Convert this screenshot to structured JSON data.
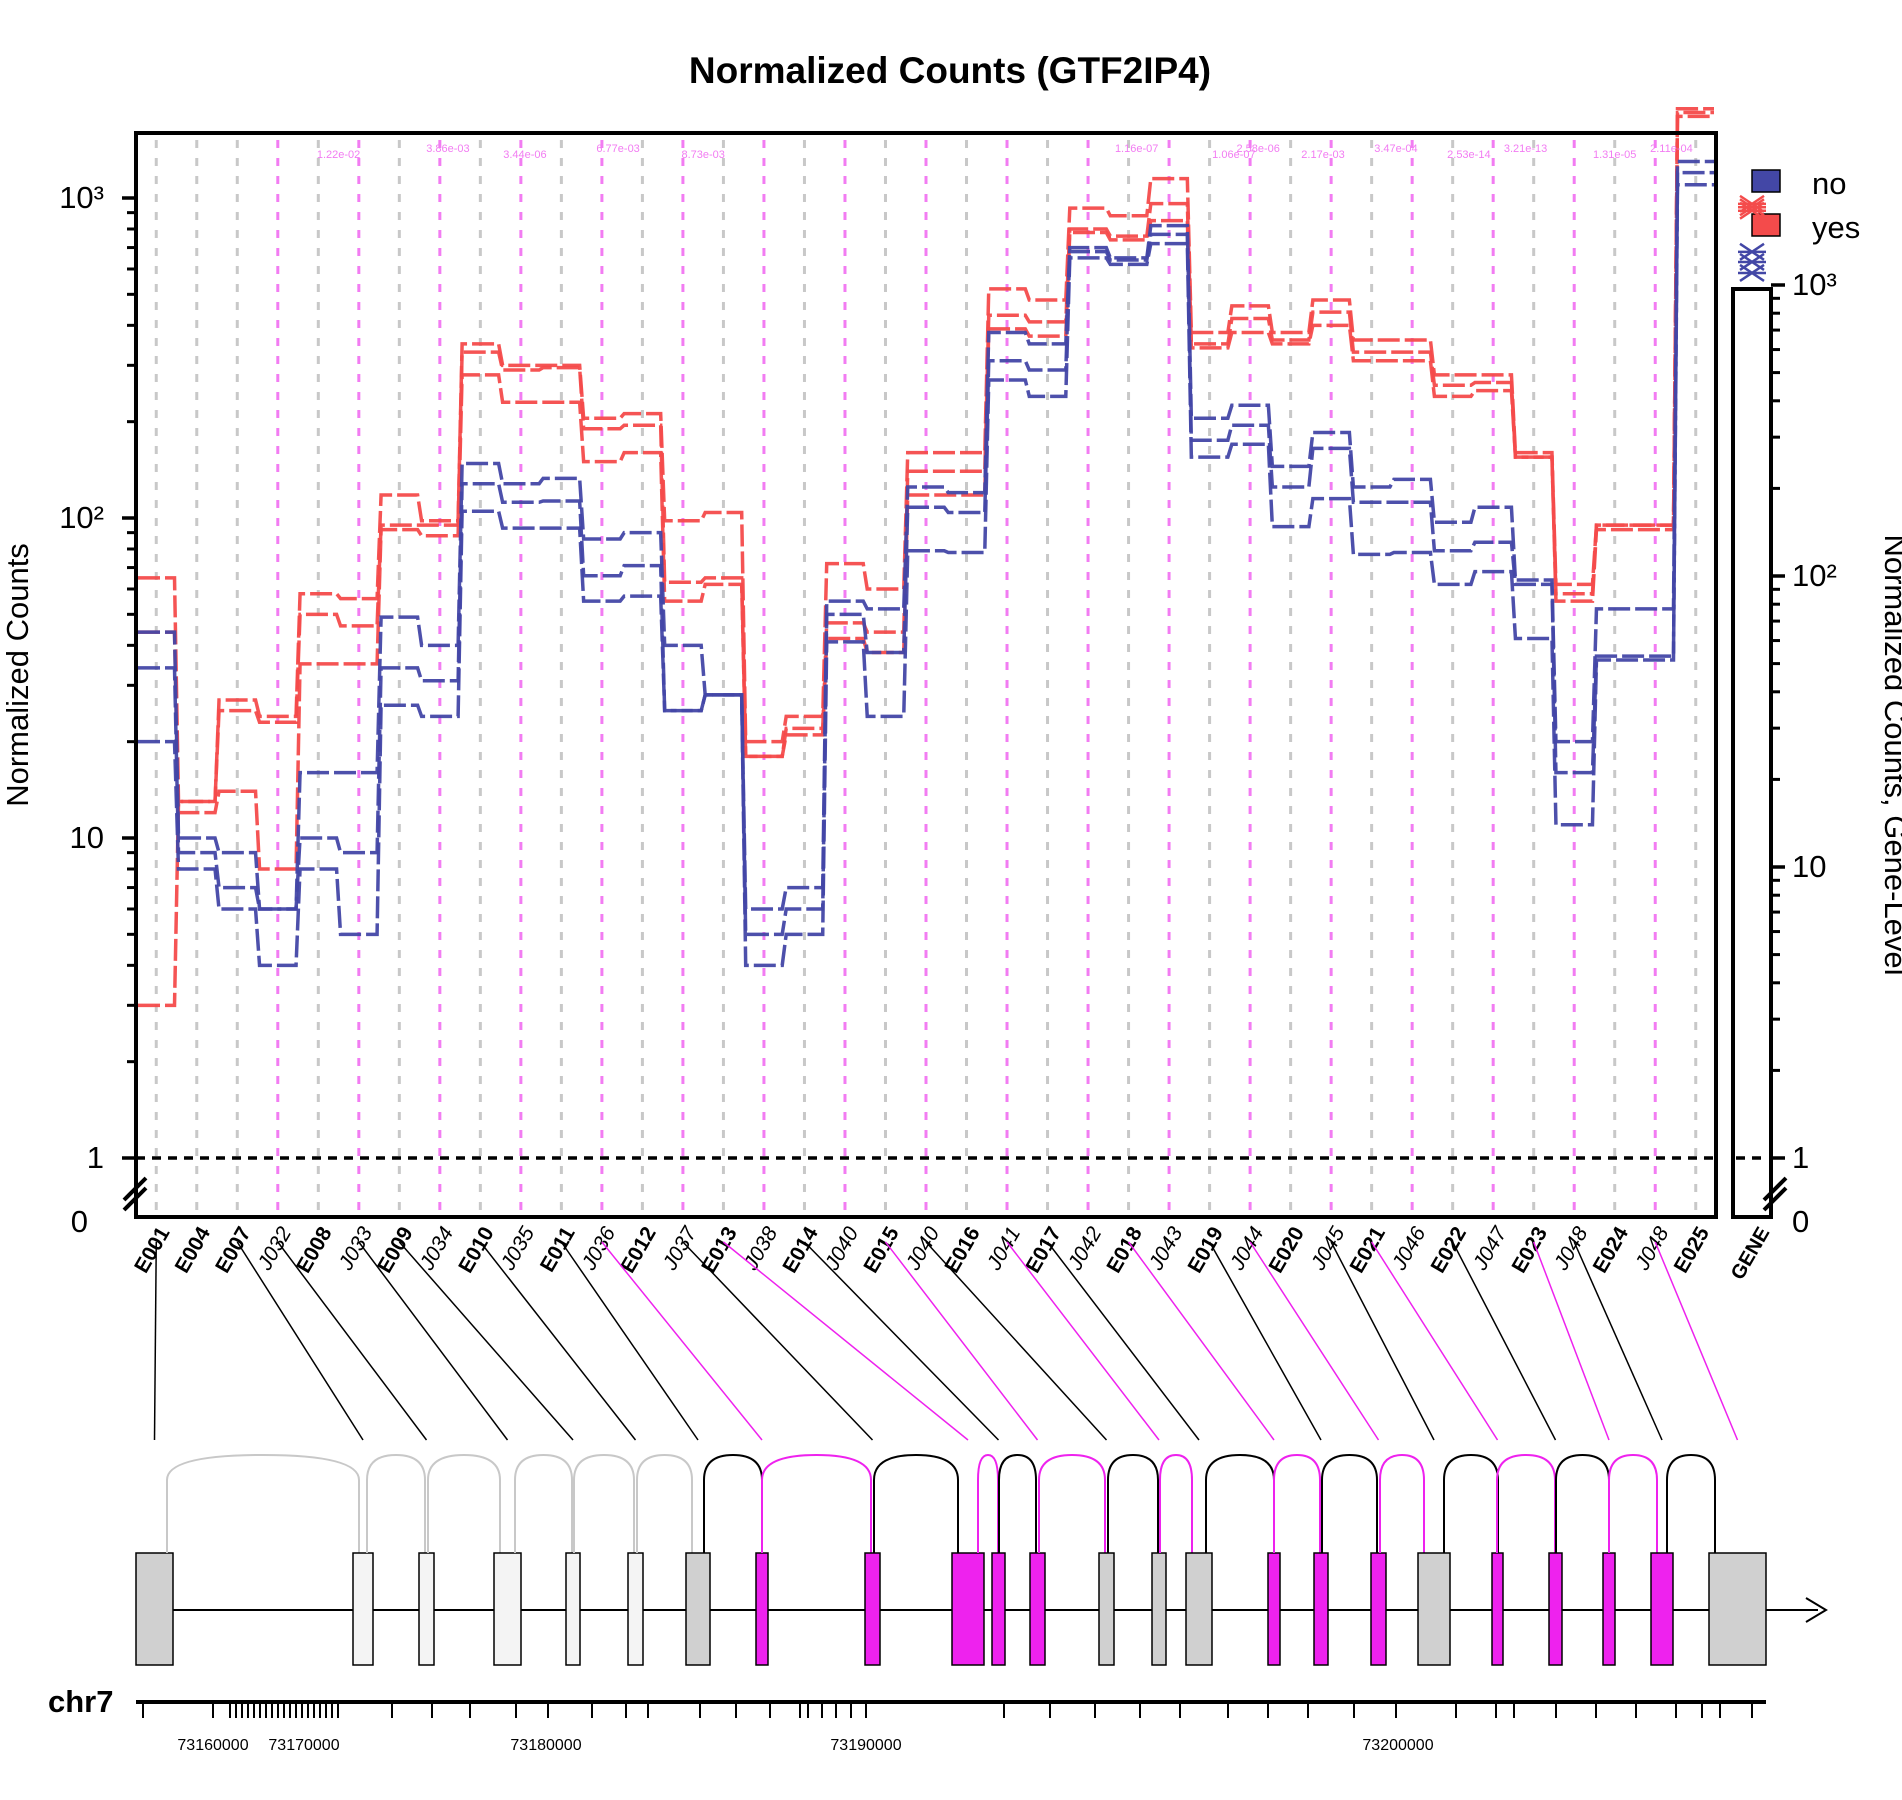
{
  "chart_data": {
    "type": "line",
    "title": "Normalized Counts (GTF2IP4)",
    "ylabel": "Normalized Counts",
    "ylabel_right": "Normalized Counts, Gene-Level",
    "yscale": "log",
    "ylim": [
      1,
      1500
    ],
    "y_ticks": [
      "10³",
      "10²",
      "10",
      "1",
      "0"
    ],
    "y_ticks_right": [
      "10³",
      "10²",
      "10",
      "1",
      "0"
    ],
    "legend": {
      "position": "top-right",
      "items": [
        {
          "label": "no",
          "color": "#4347a6"
        },
        {
          "label": "yes",
          "color": "#f44b4b"
        }
      ]
    },
    "categories": [
      "E001",
      "E004",
      "E007",
      "J032",
      "E008",
      "J033",
      "E009",
      "J034",
      "E010",
      "J035",
      "E011",
      "J036",
      "E012",
      "J037",
      "E013",
      "J038",
      "E014",
      "J040",
      "E015",
      "J040",
      "E016",
      "J041",
      "E017",
      "J042",
      "E018",
      "J043",
      "E019",
      "J044",
      "E020",
      "J045",
      "E021",
      "J046",
      "E022",
      "J047",
      "E023",
      "J048",
      "E024",
      "J048",
      "E025"
    ],
    "category_is_junction": [
      false,
      false,
      false,
      true,
      false,
      true,
      false,
      true,
      false,
      true,
      false,
      true,
      false,
      true,
      false,
      true,
      false,
      true,
      false,
      true,
      false,
      true,
      false,
      true,
      false,
      true,
      false,
      true,
      false,
      true,
      false,
      true,
      false,
      true,
      false,
      true,
      false,
      true,
      false
    ],
    "series": [
      {
        "name": "yes",
        "values": [
          65,
          13,
          27,
          24,
          58,
          56,
          118,
          98,
          350,
          300,
          300,
          205,
          212,
          98,
          104,
          20,
          24,
          72,
          60,
          160,
          160,
          520,
          480,
          930,
          880,
          1150,
          380,
          460,
          380,
          480,
          360,
          360,
          280,
          280,
          160,
          62,
          95,
          95,
          1900
        ]
      },
      {
        "name": "yes",
        "values": [
          3,
          13,
          25,
          23,
          50,
          46,
          95,
          95,
          330,
          290,
          295,
          190,
          195,
          63,
          65,
          18,
          22,
          47,
          44,
          140,
          140,
          430,
          410,
          800,
          760,
          960,
          350,
          420,
          360,
          440,
          330,
          330,
          260,
          265,
          155,
          58,
          95,
          95,
          1850
        ]
      },
      {
        "name": "yes",
        "values": [
          44,
          12,
          14,
          8,
          35,
          35,
          92,
          88,
          280,
          230,
          230,
          150,
          160,
          55,
          62,
          18,
          21,
          42,
          38,
          118,
          118,
          390,
          370,
          780,
          740,
          850,
          340,
          380,
          350,
          400,
          310,
          310,
          240,
          250,
          155,
          55,
          92,
          92,
          1800
        ]
      },
      {
        "name": "no",
        "values": [
          44,
          10,
          9,
          6,
          16,
          16,
          49,
          40,
          148,
          128,
          133,
          86,
          90,
          40,
          28,
          6,
          7,
          55,
          52,
          125,
          120,
          380,
          350,
          700,
          650,
          820,
          205,
          225,
          145,
          185,
          125,
          132,
          97,
          108,
          64,
          20,
          52,
          52,
          1300
        ]
      },
      {
        "name": "no",
        "values": [
          34,
          9,
          7,
          6,
          10,
          9,
          34,
          31,
          128,
          112,
          113,
          66,
          71,
          25,
          28,
          5,
          6,
          50,
          38,
          108,
          104,
          310,
          290,
          680,
          640,
          770,
          175,
          195,
          125,
          165,
          112,
          112,
          79,
          84,
          62,
          16,
          37,
          37,
          1200
        ]
      },
      {
        "name": "no",
        "values": [
          20,
          8,
          6,
          4,
          8,
          5,
          26,
          24,
          105,
          93,
          93,
          55,
          57,
          25,
          28,
          4,
          5,
          41,
          24,
          79,
          78,
          270,
          240,
          650,
          620,
          720,
          155,
          170,
          94,
          115,
          77,
          78,
          62,
          68,
          42,
          11,
          36,
          36,
          1100
        ]
      }
    ],
    "gene_level_label": "GENE",
    "pvalue_annotations": [
      "1.22e-02",
      "3.86e-03",
      "3.44e-06",
      "6.77e-03",
      "8.73e-03",
      "1.16e-07",
      "1.06e-07",
      "2.58e-06",
      "2.17e-03",
      "3.47e-04",
      "2.53e-14",
      "3.21e-13",
      "1.31e-05",
      "2.11e-04"
    ],
    "genome_track": {
      "chromosome": "chr7",
      "axis_ticks": [
        "73160000",
        "73170000",
        "73180000",
        "73190000",
        "73200000"
      ],
      "exons_highlighted": [
        "E013",
        "E015",
        "E016",
        "E017",
        "E018",
        "E021",
        "E022",
        "E023",
        "E024",
        "E025"
      ]
    }
  }
}
